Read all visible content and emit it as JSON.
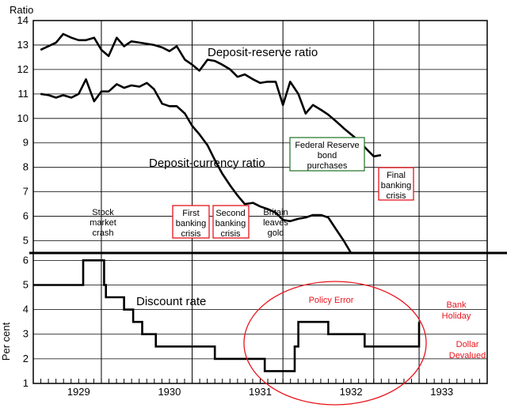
{
  "chart_data": [
    {
      "type": "line",
      "ylabel": "Ratio",
      "ylim": [
        4.5,
        14
      ],
      "yticks": [
        "5",
        "6",
        "7",
        "8",
        "9",
        "10",
        "11",
        "12",
        "13",
        "14"
      ],
      "xlim": [
        1928.5,
        1933.5
      ],
      "grid": true,
      "series": [
        {
          "name": "Deposit-reserve ratio",
          "x": [
            1928.58,
            1928.75,
            1928.83,
            1928.92,
            1929.0,
            1929.08,
            1929.17,
            1929.25,
            1929.33,
            1929.42,
            1929.5,
            1929.58,
            1929.67,
            1929.75,
            1929.83,
            1929.92,
            1930.0,
            1930.08,
            1930.17,
            1930.25,
            1930.33,
            1930.42,
            1930.5,
            1930.58,
            1930.67,
            1930.75,
            1930.83,
            1930.92,
            1931.0,
            1931.08,
            1931.17,
            1931.25,
            1931.33,
            1931.42,
            1931.5,
            1931.58,
            1931.67,
            1931.75,
            1931.83,
            1931.92,
            1932.0,
            1932.08,
            1932.17,
            1932.25,
            1932.33,
            1932.42,
            1932.5,
            1932.58,
            1932.67,
            1932.75
          ],
          "y": [
            12.8,
            13.1,
            13.45,
            13.3,
            13.2,
            13.2,
            13.3,
            12.8,
            12.55,
            13.3,
            12.95,
            13.15,
            13.1,
            13.05,
            13.0,
            12.9,
            12.75,
            12.95,
            12.4,
            12.2,
            11.95,
            12.4,
            12.35,
            12.2,
            12.0,
            11.7,
            11.8,
            11.6,
            11.45,
            11.5,
            11.5,
            10.55,
            11.5,
            11.0,
            10.2,
            10.55,
            10.35,
            10.15,
            9.9,
            9.6,
            9.35,
            9.1,
            8.75,
            8.45,
            8.5,
            null,
            null,
            null,
            null,
            null
          ]
        },
        {
          "name": "Deposit-currency ratio",
          "x": [
            1928.58,
            1928.67,
            1928.75,
            1928.83,
            1928.92,
            1929.0,
            1929.08,
            1929.17,
            1929.25,
            1929.33,
            1929.42,
            1929.5,
            1929.58,
            1929.67,
            1929.75,
            1929.83,
            1929.92,
            1930.0,
            1930.08,
            1930.17,
            1930.25,
            1930.33,
            1930.42,
            1930.5,
            1930.58,
            1930.67,
            1930.75,
            1930.83,
            1930.92,
            1931.0,
            1931.08,
            1931.17,
            1931.25,
            1931.33,
            1931.42,
            1931.5,
            1931.58,
            1931.67,
            1931.75,
            1931.83,
            1931.92,
            1932.0,
            1932.08,
            1932.17,
            1932.25
          ],
          "y": [
            11.0,
            10.95,
            10.85,
            10.95,
            10.85,
            11.0,
            11.6,
            10.7,
            11.1,
            11.1,
            11.4,
            11.25,
            11.35,
            11.3,
            11.45,
            11.2,
            10.6,
            10.5,
            10.5,
            10.2,
            9.7,
            9.35,
            8.9,
            8.3,
            7.75,
            7.25,
            6.85,
            6.5,
            6.55,
            6.4,
            6.3,
            6.15,
            5.85,
            5.8,
            5.9,
            5.95,
            6.05,
            6.05,
            5.95,
            5.5,
            5.0,
            4.5,
            null,
            null,
            null
          ]
        }
      ],
      "annotations": [
        "Stock market crash",
        "First banking crisis",
        "Second banking crisis",
        "Britain leaves gold",
        "Federal Reserve bond purchases",
        "Final banking crisis"
      ]
    },
    {
      "type": "line",
      "ylabel": "Per cent",
      "ylim": [
        1,
        6.3
      ],
      "yticks": [
        "1",
        "2",
        "3",
        "4",
        "5",
        "6"
      ],
      "xlim": [
        1928.5,
        1933.5
      ],
      "xticks": [
        "1929",
        "1930",
        "1931",
        "1932",
        "1933"
      ],
      "grid": true,
      "series": [
        {
          "name": "Discount rate",
          "step_x": [
            1928.5,
            1929.05,
            1929.05,
            1929.28,
            1929.28,
            1929.3,
            1929.3,
            1929.5,
            1929.5,
            1929.6,
            1929.6,
            1929.7,
            1929.7,
            1929.78,
            1929.78,
            1929.85,
            1929.85,
            1929.97,
            1929.97,
            1930.5,
            1930.5,
            1931.05,
            1931.05,
            1931.38,
            1931.38,
            1931.42,
            1931.42,
            1931.75,
            1931.75,
            1932.15,
            1932.15,
            1932.75,
            1932.75
          ],
          "step_y": [
            5.0,
            5.0,
            6.0,
            6.0,
            5.0,
            5.0,
            4.5,
            4.5,
            4.0,
            4.0,
            3.5,
            3.5,
            3.0,
            3.0,
            3.0,
            3.0,
            2.5,
            2.5,
            2.5,
            2.5,
            2.0,
            2.0,
            1.5,
            1.5,
            2.5,
            2.5,
            3.5,
            3.5,
            3.0,
            3.0,
            2.5,
            2.5,
            3.5
          ]
        }
      ]
    }
  ],
  "labels": {
    "ratio_axis": "Ratio",
    "percent_axis": "Per cent",
    "deposit_reserve": "Deposit-reserve ratio",
    "deposit_currency": "Deposit-currency ratio",
    "discount_rate": "Discount rate",
    "stock_crash": [
      "Stock",
      "market",
      "crash"
    ],
    "first_crisis": [
      "First",
      "banking",
      "crisis"
    ],
    "second_crisis": [
      "Second",
      "banking",
      "crisis"
    ],
    "britain_gold": [
      "Britain",
      "leaves",
      "gold"
    ],
    "fed_purchases": [
      "Federal Reserve",
      "bond",
      "purchases"
    ],
    "final_crisis": [
      "Final",
      "banking",
      "crisis"
    ],
    "policy_error": "Policy Error",
    "bank_holiday": [
      "Bank",
      "Holiday"
    ],
    "dollar_devalued": [
      "Dollar",
      "Devalued"
    ]
  },
  "colors": {
    "red": "#e8141c",
    "green": "#2e7d32",
    "line": "#000000"
  }
}
